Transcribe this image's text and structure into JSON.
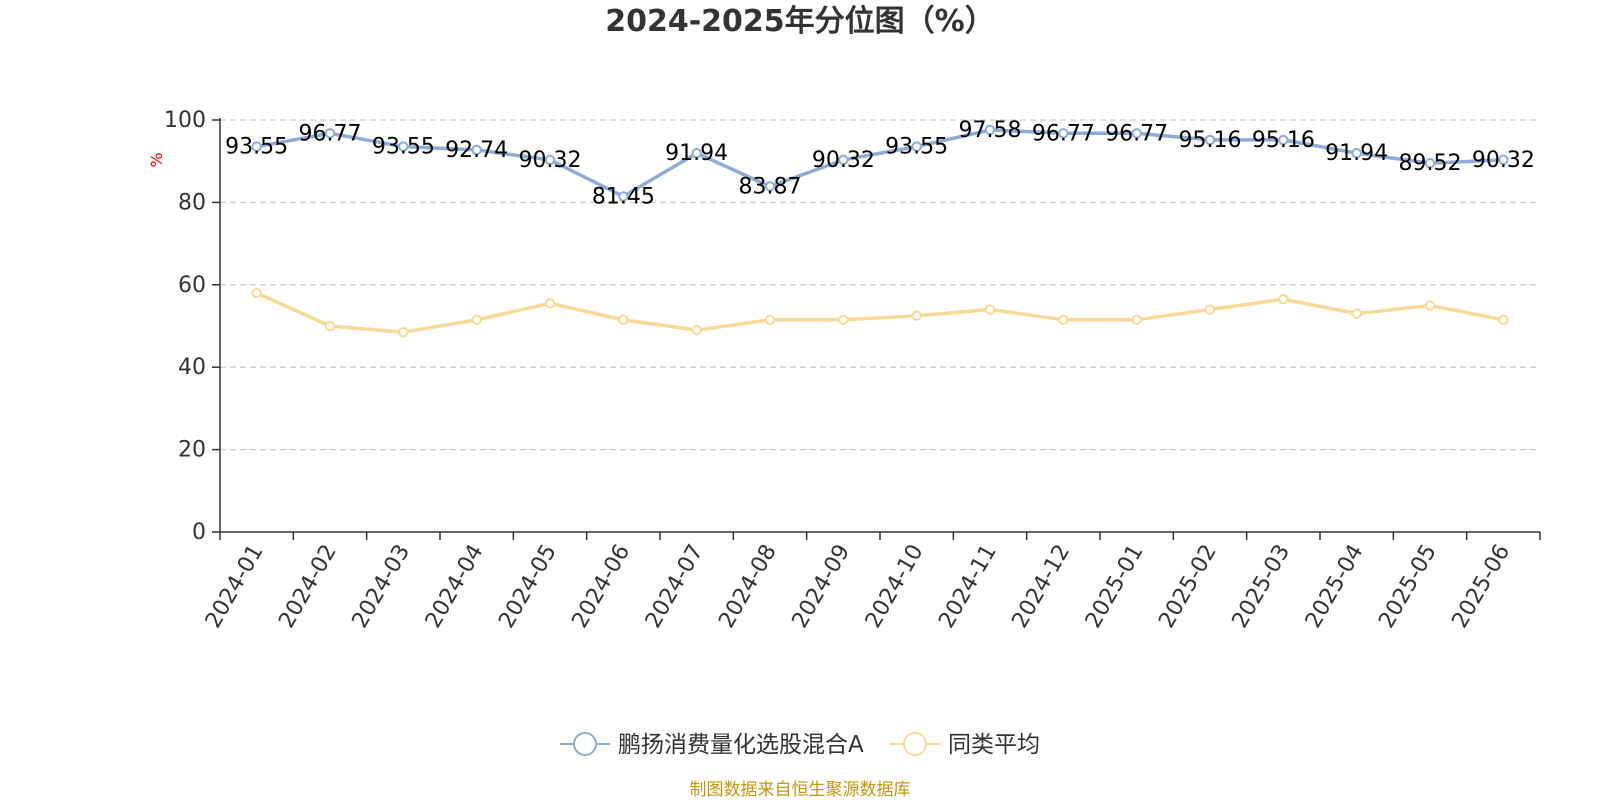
{
  "chart_data": {
    "type": "line",
    "title": "2024-2025年分位图（%）",
    "ylabel": "%",
    "ylim": [
      0,
      100
    ],
    "yticks": [
      0,
      20,
      40,
      60,
      80,
      100
    ],
    "grid": true,
    "legend_position": "bottom",
    "categories": [
      "2024-01",
      "2024-02",
      "2024-03",
      "2024-04",
      "2024-05",
      "2024-06",
      "2024-07",
      "2024-08",
      "2024-09",
      "2024-10",
      "2024-11",
      "2024-12",
      "2025-01",
      "2025-02",
      "2025-03",
      "2025-04",
      "2025-05",
      "2025-06"
    ],
    "series": [
      {
        "name": "鹏扬消费量化选股混合A",
        "color": "#8eacd8",
        "show_labels": true,
        "values": [
          93.55,
          96.77,
          93.55,
          92.74,
          90.32,
          81.45,
          91.94,
          83.87,
          90.32,
          93.55,
          97.58,
          96.77,
          96.77,
          95.16,
          95.16,
          91.94,
          89.52,
          90.32
        ]
      },
      {
        "name": "同类平均",
        "color": "#fad997",
        "show_labels": false,
        "values": [
          58,
          50,
          48.5,
          51.5,
          55.5,
          51.5,
          49,
          51.5,
          51.5,
          52.5,
          54,
          51.5,
          51.5,
          54,
          56.5,
          53,
          55,
          51.5
        ]
      }
    ]
  },
  "footer": {
    "source": "制图数据来自恒生聚源数据库"
  }
}
